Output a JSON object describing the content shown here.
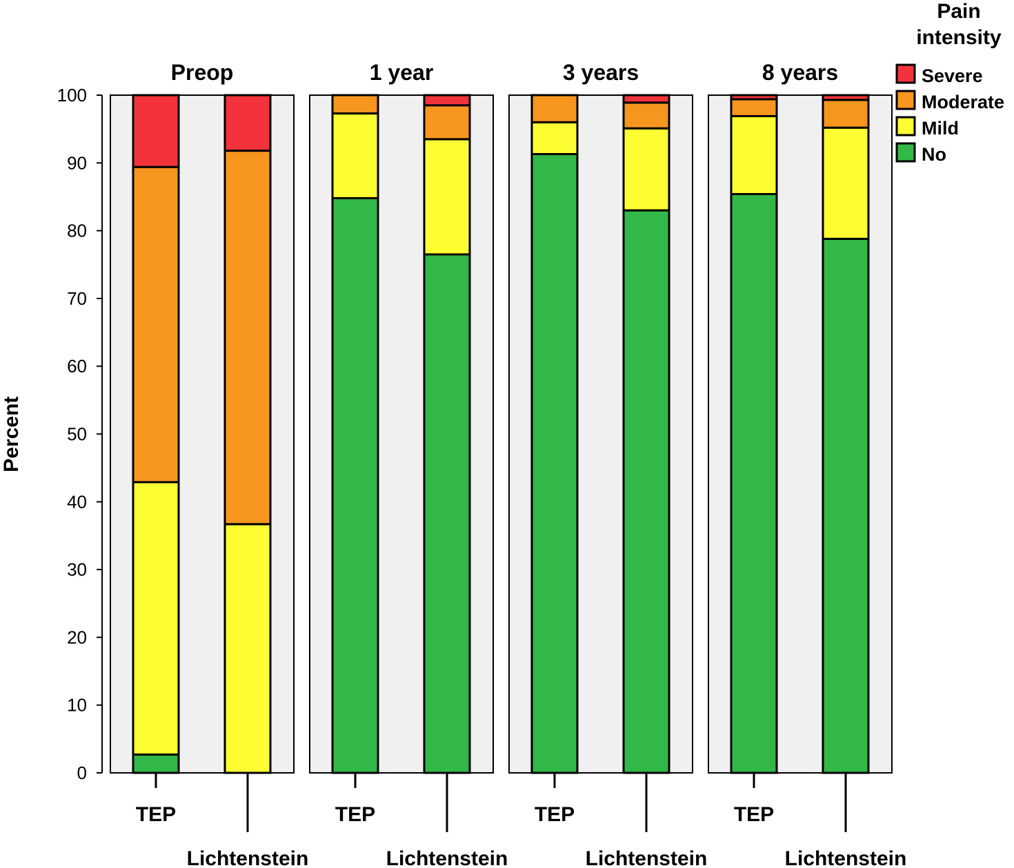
{
  "chart_data": {
    "type": "bar",
    "stacked": true,
    "ylabel": "Percent",
    "ylim": [
      0,
      100
    ],
    "yticks": [
      0,
      10,
      20,
      30,
      40,
      50,
      60,
      70,
      80,
      90,
      100
    ],
    "categories": [
      "TEP",
      "Lichtenstein"
    ],
    "legend": {
      "title_lines": [
        "Pain",
        "intensity"
      ],
      "placement": "top-right",
      "items": [
        {
          "name": "Severe",
          "color": "#f2333b"
        },
        {
          "name": "Moderate",
          "color": "#f7961e"
        },
        {
          "name": "Mild",
          "color": "#fdfd33"
        },
        {
          "name": "No",
          "color": "#31b848"
        }
      ]
    },
    "series_order": [
      "No",
      "Mild",
      "Moderate",
      "Severe"
    ],
    "panels": [
      {
        "title": "Preop",
        "bars": [
          {
            "category": "TEP",
            "No": 2.7,
            "Mild": 40.2,
            "Moderate": 46.5,
            "Severe": 10.6
          },
          {
            "category": "Lichtenstein",
            "No": 0.0,
            "Mild": 36.7,
            "Moderate": 55.1,
            "Severe": 8.2
          }
        ]
      },
      {
        "title": "1 year",
        "bars": [
          {
            "category": "TEP",
            "No": 84.8,
            "Mild": 12.5,
            "Moderate": 2.7,
            "Severe": 0.0
          },
          {
            "category": "Lichtenstein",
            "No": 76.5,
            "Mild": 17.0,
            "Moderate": 5.0,
            "Severe": 1.5
          }
        ]
      },
      {
        "title": "3 years",
        "bars": [
          {
            "category": "TEP",
            "No": 91.3,
            "Mild": 4.7,
            "Moderate": 4.0,
            "Severe": 0.0
          },
          {
            "category": "Lichtenstein",
            "No": 83.0,
            "Mild": 12.1,
            "Moderate": 3.8,
            "Severe": 1.1
          }
        ]
      },
      {
        "title": "8 years",
        "bars": [
          {
            "category": "TEP",
            "No": 85.4,
            "Mild": 11.5,
            "Moderate": 2.5,
            "Severe": 0.6
          },
          {
            "category": "Lichtenstein",
            "No": 78.8,
            "Mild": 16.4,
            "Moderate": 4.1,
            "Severe": 0.7
          }
        ]
      }
    ]
  }
}
